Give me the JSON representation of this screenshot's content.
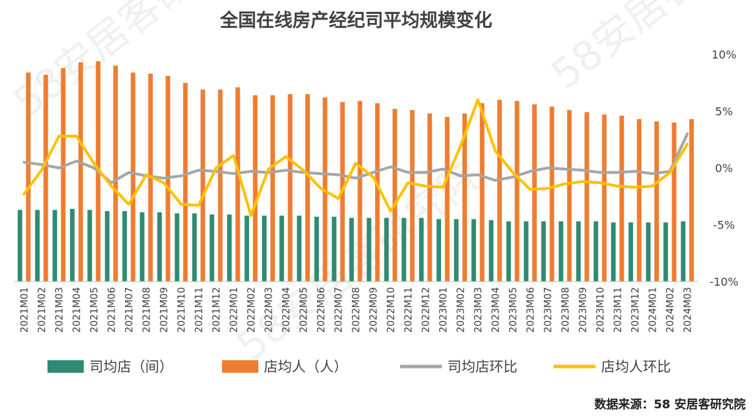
{
  "chart_data": {
    "type": "bar+line",
    "title": "全国在线房产经纪司平均规模变化",
    "source": "数据来源：58 安居客研究院",
    "watermark": "58安居客研究院",
    "categories": [
      "2021M01",
      "2021M02",
      "2021M03",
      "2021M04",
      "2021M05",
      "2021M06",
      "2021M07",
      "2021M08",
      "2021M09",
      "2021M10",
      "2021M11",
      "2021M12",
      "2022M01",
      "2022M02",
      "2022M03",
      "2022M04",
      "2022M05",
      "2022M06",
      "2022M07",
      "2022M08",
      "2022M09",
      "2022M10",
      "2022M11",
      "2022M12",
      "2023M01",
      "2023M02",
      "2023M03",
      "2023M04",
      "2023M05",
      "2023M06",
      "2023M07",
      "2023M08",
      "2023M09",
      "2023M10",
      "2023M11",
      "2023M12",
      "2024M01",
      "2024M02",
      "2024M03"
    ],
    "right_axis": {
      "ylim": [
        -10,
        10
      ],
      "ticks": [
        "10%",
        "5%",
        "0%",
        "-5%",
        "-10%"
      ],
      "tick_values": [
        10,
        5,
        0,
        -5,
        -10
      ]
    },
    "series": [
      {
        "name": "司均店（间）",
        "kind": "bar",
        "axis": "left-hidden",
        "color": "#2E8B72",
        "values": [
          6.3,
          6.3,
          6.3,
          6.4,
          6.3,
          6.2,
          6.2,
          6.1,
          6.1,
          6.0,
          6.0,
          5.9,
          5.9,
          5.8,
          5.8,
          5.8,
          5.8,
          5.7,
          5.7,
          5.6,
          5.6,
          5.6,
          5.6,
          5.6,
          5.5,
          5.5,
          5.5,
          5.4,
          5.3,
          5.3,
          5.3,
          5.3,
          5.3,
          5.3,
          5.2,
          5.2,
          5.2,
          5.2,
          5.3
        ]
      },
      {
        "name": "店均人（人）",
        "kind": "bar",
        "axis": "left-hidden",
        "color": "#ED7D31",
        "values": [
          18.4,
          18.2,
          18.8,
          19.3,
          19.4,
          19.0,
          18.4,
          18.3,
          18.1,
          17.5,
          16.9,
          16.9,
          17.1,
          16.4,
          16.4,
          16.5,
          16.5,
          16.2,
          15.8,
          15.9,
          15.7,
          15.2,
          15.1,
          14.8,
          14.5,
          14.8,
          15.7,
          16.0,
          15.9,
          15.6,
          15.4,
          15.1,
          14.9,
          14.7,
          14.6,
          14.3,
          14.1,
          14.0,
          14.3
        ]
      },
      {
        "name": "司均店环比",
        "kind": "line",
        "axis": "right",
        "color": "#A6A6A6",
        "values": [
          0.5,
          0.3,
          0.0,
          0.6,
          0.0,
          -1.3,
          -0.4,
          -0.7,
          -0.9,
          -0.7,
          -0.2,
          -0.3,
          -0.5,
          -0.3,
          -0.4,
          -0.2,
          -0.4,
          -0.5,
          -0.6,
          -0.9,
          -0.4,
          0.1,
          -0.4,
          -0.4,
          -0.1,
          -0.7,
          -0.6,
          -1.1,
          -0.8,
          -0.3,
          0.0,
          -0.1,
          -0.2,
          -0.4,
          -0.4,
          -0.3,
          -0.5,
          -0.3,
          3.0
        ]
      },
      {
        "name": "店均人环比",
        "kind": "line",
        "axis": "right",
        "color": "#FFC000",
        "values": [
          -2.3,
          -0.2,
          2.8,
          2.8,
          0.4,
          -1.6,
          -3.2,
          -0.6,
          -1.3,
          -3.2,
          -3.3,
          0.0,
          1.1,
          -4.2,
          -0.1,
          1.0,
          -0.2,
          -1.8,
          -2.7,
          0.4,
          -0.8,
          -3.8,
          -1.3,
          -1.6,
          -1.7,
          1.9,
          6.0,
          1.5,
          -0.4,
          -1.9,
          -1.8,
          -1.4,
          -1.2,
          -1.3,
          -1.6,
          -1.7,
          -1.6,
          -0.4,
          2.1
        ]
      }
    ],
    "legend": [
      "司均店（间）",
      "店均人（人）",
      "司均店环比",
      "店均人环比"
    ],
    "legend_position": "bottom"
  }
}
